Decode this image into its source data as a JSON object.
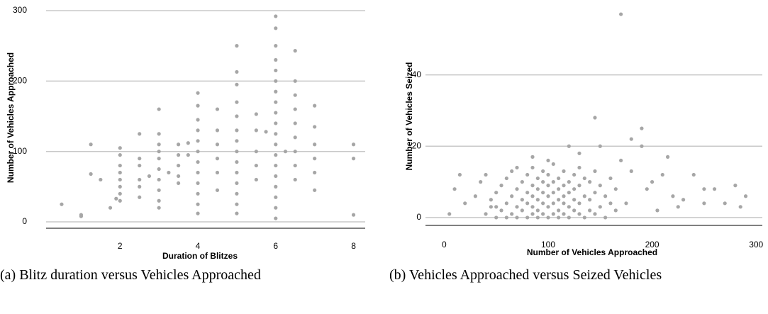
{
  "chart_data": [
    {
      "type": "scatter",
      "xlabel": "Duration of Blitzes",
      "ylabel": "Number of Vehicles Approached",
      "caption": "(a) Blitz duration versus Vehicles Approached",
      "color": "#a6a6a6",
      "grid": true,
      "xlim": [
        0.1,
        8.3
      ],
      "ylim": [
        -9,
        305
      ],
      "xticks": [
        2,
        4,
        6,
        8
      ],
      "yticks": [
        0,
        100,
        200,
        300
      ],
      "x": [
        0.5,
        1,
        1,
        1.25,
        1.25,
        1.5,
        1.75,
        1.9,
        2,
        2,
        2,
        2,
        2,
        2,
        2,
        2,
        2.5,
        2.5,
        2.5,
        2.5,
        2.5,
        2.5,
        2.75,
        3,
        3,
        3,
        3,
        3,
        3,
        3,
        3,
        3,
        3,
        3.25,
        3.5,
        3.5,
        3.5,
        3.5,
        3.5,
        3.75,
        3.75,
        4,
        4,
        4,
        4,
        4,
        4,
        4,
        4,
        4,
        4,
        4,
        4,
        4.5,
        4.5,
        4.5,
        4.5,
        4.5,
        4.5,
        5,
        5,
        5,
        5,
        5,
        5,
        5,
        5,
        5,
        5,
        5,
        5,
        5,
        5,
        5.5,
        5.5,
        5.5,
        5.5,
        5.5,
        5.75,
        6,
        6,
        6,
        6,
        6,
        6,
        6,
        6,
        6,
        6,
        6,
        6,
        6,
        6,
        6,
        6,
        6,
        6,
        6,
        6.25,
        6.5,
        6.5,
        6.5,
        6.5,
        6.5,
        6.5,
        6.5,
        6.5,
        6.5,
        7,
        7,
        7,
        7,
        7,
        7,
        8,
        8,
        8
      ],
      "values": [
        25,
        8,
        10,
        68,
        110,
        60,
        20,
        33,
        30,
        40,
        50,
        60,
        70,
        80,
        95,
        105,
        35,
        50,
        60,
        80,
        90,
        125,
        65,
        20,
        30,
        45,
        60,
        75,
        90,
        100,
        110,
        125,
        160,
        70,
        55,
        65,
        80,
        95,
        110,
        95,
        112,
        12,
        25,
        40,
        55,
        70,
        85,
        100,
        115,
        130,
        145,
        165,
        183,
        45,
        70,
        90,
        110,
        130,
        160,
        12,
        25,
        40,
        55,
        70,
        85,
        100,
        115,
        130,
        150,
        170,
        195,
        213,
        250,
        60,
        80,
        100,
        130,
        153,
        128,
        5,
        20,
        35,
        50,
        65,
        80,
        95,
        110,
        125,
        140,
        155,
        170,
        185,
        200,
        215,
        230,
        250,
        275,
        292,
        100,
        60,
        80,
        100,
        120,
        140,
        160,
        180,
        200,
        243,
        45,
        70,
        90,
        110,
        135,
        165,
        10,
        90,
        110
      ]
    },
    {
      "type": "scatter",
      "xlabel": "Number of Vehicles Approached",
      "ylabel": "Number of Vehicles Seized",
      "caption": "(b) Vehicles Approached versus Seized Vehicles",
      "color": "#a6a6a6",
      "grid": true,
      "xlim": [
        -18,
        306
      ],
      "ylim": [
        -2.2,
        59
      ],
      "xticks": [
        0,
        100,
        200,
        300
      ],
      "yticks": [
        0,
        20,
        40
      ],
      "x": [
        170,
        145,
        190,
        120,
        150,
        190,
        180,
        215,
        85,
        130,
        10,
        15,
        5,
        20,
        30,
        35,
        40,
        45,
        200,
        210,
        220,
        230,
        240,
        250,
        260,
        270,
        280,
        290,
        285,
        250,
        225,
        205,
        195,
        180,
        175,
        170,
        40,
        45,
        50,
        50,
        50,
        55,
        55,
        60,
        60,
        60,
        65,
        65,
        65,
        70,
        70,
        70,
        70,
        75,
        75,
        75,
        80,
        80,
        80,
        80,
        85,
        85,
        85,
        85,
        85,
        90,
        90,
        90,
        90,
        90,
        95,
        95,
        95,
        95,
        95,
        100,
        100,
        100,
        100,
        100,
        100,
        105,
        105,
        105,
        105,
        105,
        110,
        110,
        110,
        110,
        110,
        115,
        115,
        115,
        115,
        115,
        120,
        120,
        120,
        120,
        125,
        125,
        125,
        125,
        130,
        130,
        130,
        130,
        135,
        135,
        135,
        140,
        140,
        140,
        145,
        145,
        145,
        150,
        150,
        155,
        155,
        160,
        160,
        165,
        165
      ],
      "values": [
        57,
        28,
        25,
        20,
        20,
        20,
        22,
        17,
        17,
        18,
        8,
        12,
        1,
        4,
        6,
        10,
        12,
        3,
        10,
        12,
        6,
        5,
        12,
        4,
        8,
        4,
        9,
        6,
        3,
        8,
        3,
        2,
        8,
        13,
        4,
        16,
        1,
        5,
        0,
        3,
        7,
        2,
        9,
        0,
        4,
        11,
        1,
        6,
        13,
        0,
        3,
        8,
        14,
        2,
        5,
        10,
        0,
        4,
        7,
        12,
        1,
        3,
        6,
        9,
        14,
        0,
        2,
        5,
        8,
        11,
        1,
        4,
        7,
        10,
        13,
        0,
        3,
        6,
        9,
        12,
        16,
        1,
        4,
        7,
        10,
        15,
        0,
        2,
        5,
        8,
        11,
        1,
        4,
        6,
        9,
        13,
        0,
        3,
        7,
        10,
        2,
        5,
        8,
        12,
        1,
        4,
        9,
        14,
        0,
        6,
        11,
        2,
        5,
        10,
        1,
        7,
        13,
        3,
        9,
        0,
        6,
        4,
        11,
        2,
        8
      ]
    }
  ]
}
